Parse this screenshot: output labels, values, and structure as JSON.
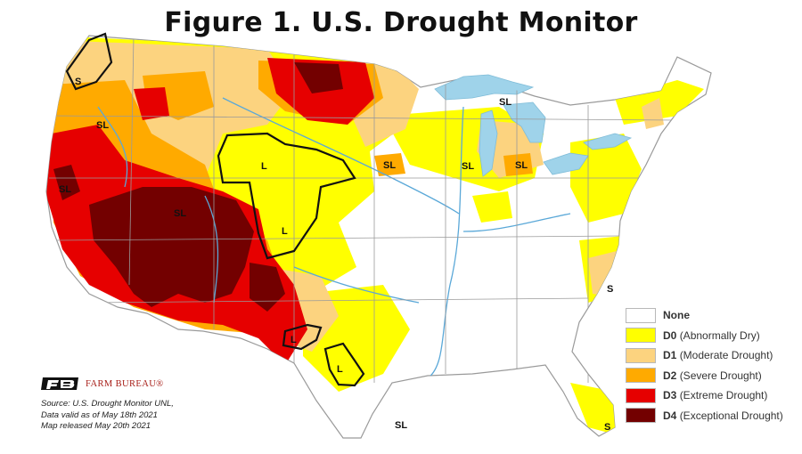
{
  "title": "Figure 1. U.S. Drought Monitor",
  "legend": [
    {
      "code": "None",
      "desc": "",
      "color": "#ffffff"
    },
    {
      "code": "D0",
      "desc": "(Abnormally Dry)",
      "color": "#ffff00"
    },
    {
      "code": "D1",
      "desc": "(Moderate Drought)",
      "color": "#fcd37f"
    },
    {
      "code": "D2",
      "desc": "(Severe Drought)",
      "color": "#ffaa00"
    },
    {
      "code": "D3",
      "desc": "(Extreme Drought)",
      "color": "#e60000"
    },
    {
      "code": "D4",
      "desc": "(Exceptional Drought)",
      "color": "#730000"
    }
  ],
  "map_labels": [
    "S",
    "SL",
    "SL",
    "L",
    "L",
    "SL",
    "SL",
    "SL",
    "SL",
    "SL",
    "L",
    "L",
    "S",
    "SL",
    "S"
  ],
  "colors": {
    "water": "#9fd3ea",
    "river": "#5aa8d8",
    "border": "#9a9a9a",
    "outline": "#111111",
    "brand": "#a8201a"
  },
  "brand": "FARM BUREAU®",
  "source_lines": [
    "Source: U.S. Drought Monitor UNL,",
    "Data valid as of May 18th 2021",
    "Map released May 20th 2021"
  ]
}
